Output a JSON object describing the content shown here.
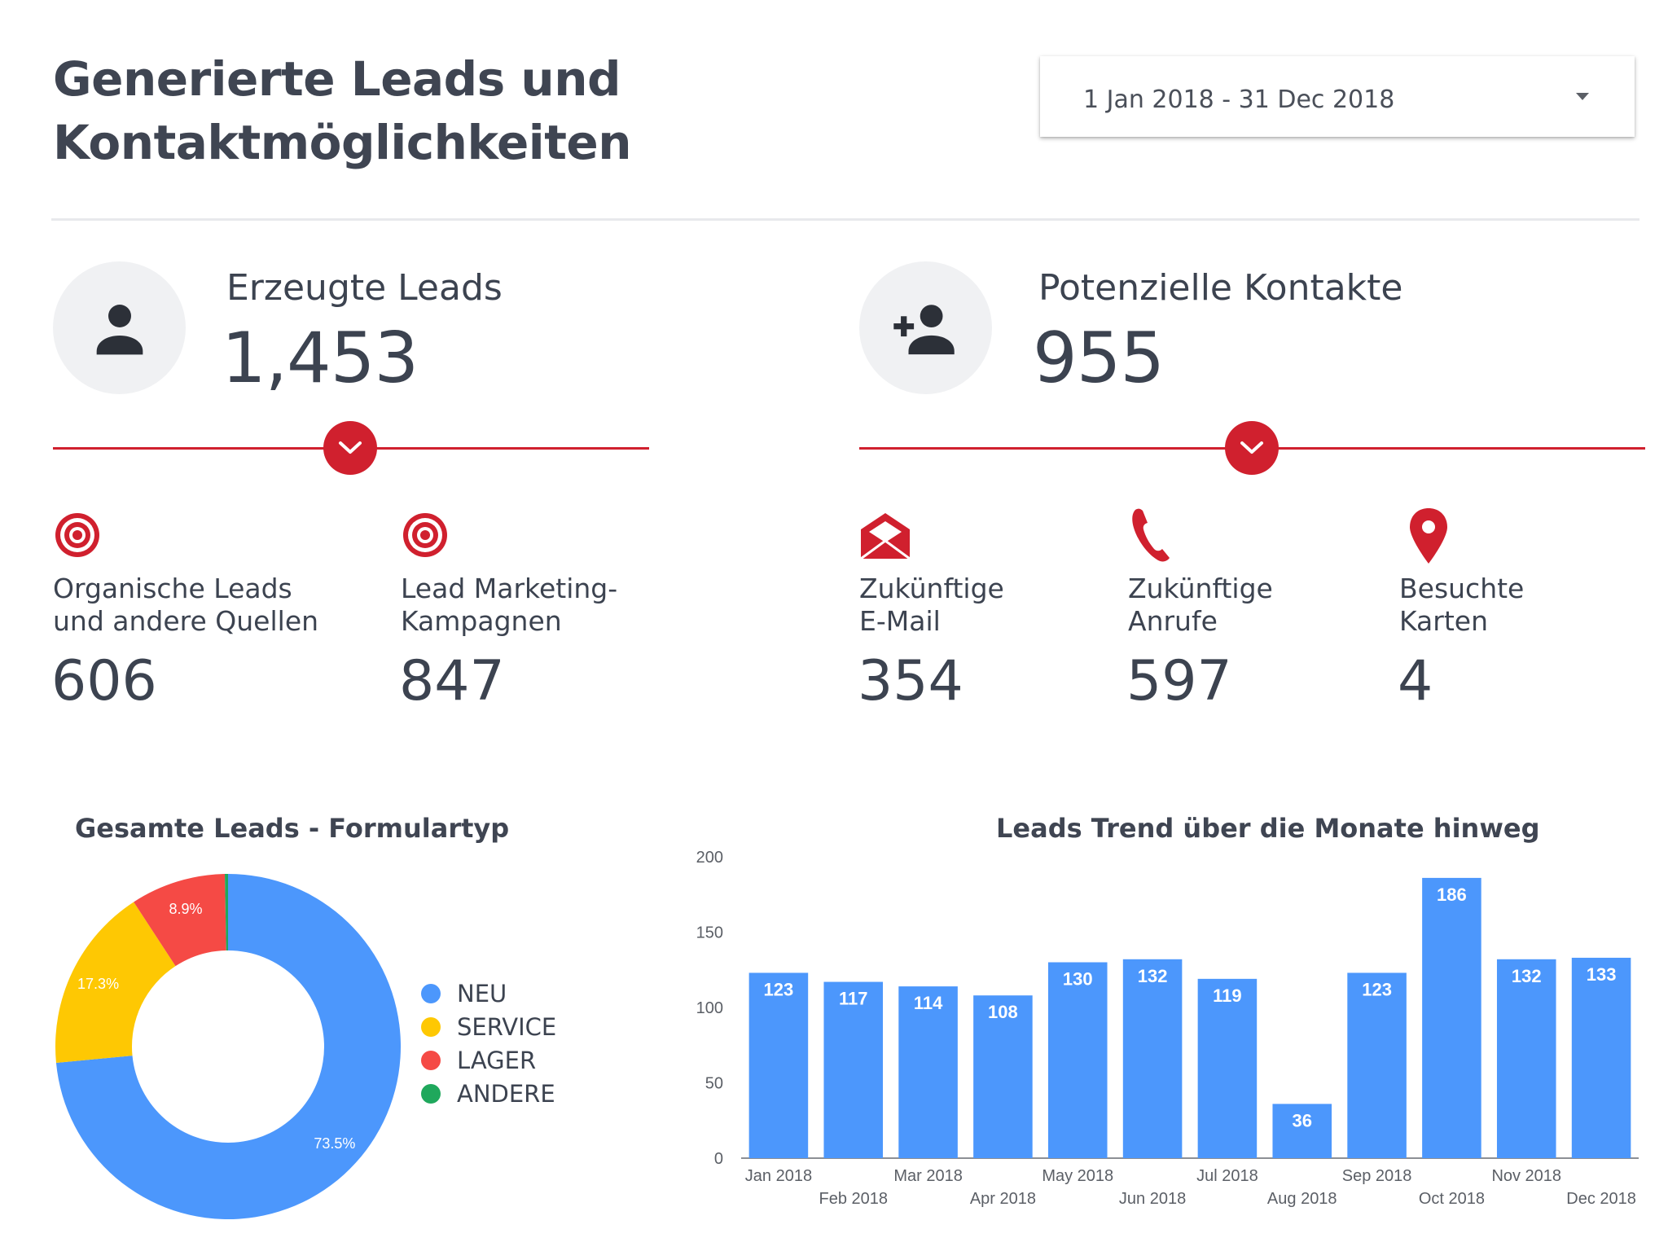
{
  "header": {
    "title": "Generierte Leads und Kontaktmöglichkeiten",
    "date_range": "1 Jan 2018 - 31 Dec 2018"
  },
  "kpis": {
    "leads": {
      "label": "Erzeugte Leads",
      "value": "1,453",
      "icon": "person-icon",
      "breakdown": [
        {
          "line1": "Organische Leads",
          "line2": "und andere Quellen",
          "value": "606",
          "icon": "target-icon"
        },
        {
          "line1": "Lead Marketing-",
          "line2": "Kampagnen",
          "value": "847",
          "icon": "target-icon"
        }
      ]
    },
    "contacts": {
      "label": "Potenzielle Kontakte",
      "value": "955",
      "icon": "person-add-icon",
      "breakdown": [
        {
          "line1": "Zukünftige",
          "line2": "E-Mail",
          "value": "354",
          "icon": "email-icon"
        },
        {
          "line1": "Zukünftige",
          "line2": "Anrufe",
          "value": "597",
          "icon": "phone-icon"
        },
        {
          "line1": "Besuchte",
          "line2": "Karten",
          "value": "4",
          "icon": "map-pin-icon"
        }
      ]
    }
  },
  "colors": {
    "accent_red": "#d0202e",
    "bar_blue": "#4c97fc",
    "donut": [
      "#4c97fc",
      "#fec803",
      "#f54a45",
      "#1fa85c"
    ]
  },
  "chart_data": [
    {
      "type": "pie",
      "title": "Gesamte Leads - Formulartyp",
      "donut": true,
      "legend": "right",
      "categories": [
        "NEU",
        "SERVICE",
        "LAGER",
        "ANDERE"
      ],
      "values": [
        73.5,
        17.3,
        8.9,
        0.3
      ],
      "labels": [
        "73.5%",
        "17.3%",
        "8.9%",
        ""
      ]
    },
    {
      "type": "bar",
      "title": "Leads Trend über die Monate hinweg",
      "categories": [
        "Jan 2018",
        "Feb 2018",
        "Mar 2018",
        "Apr 2018",
        "May 2018",
        "Jun 2018",
        "Jul 2018",
        "Aug 2018",
        "Sep 2018",
        "Oct 2018",
        "Nov 2018",
        "Dec 2018"
      ],
      "values": [
        123,
        117,
        114,
        108,
        130,
        132,
        119,
        36,
        123,
        186,
        132,
        133
      ],
      "ylim": [
        0,
        200
      ],
      "yticks": [
        0,
        50,
        100,
        150,
        200
      ],
      "grid": false,
      "data_labels": true
    }
  ]
}
